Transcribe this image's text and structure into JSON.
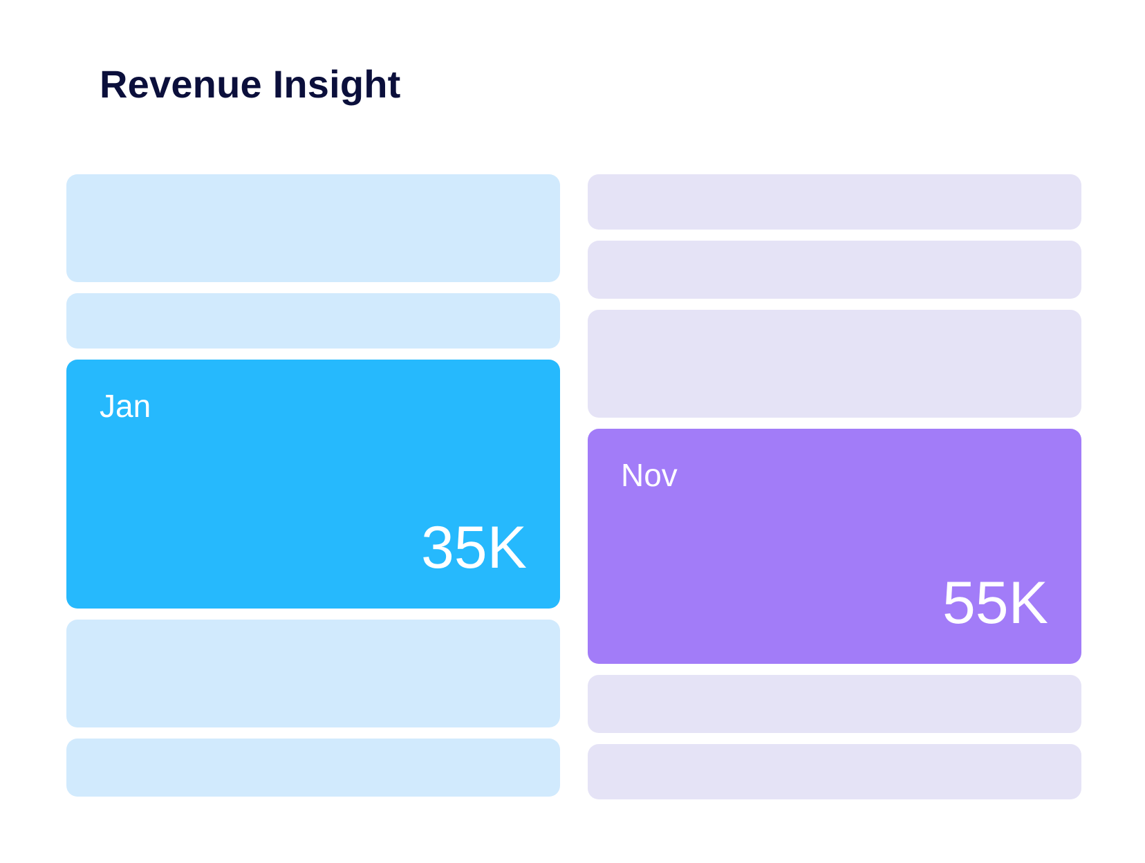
{
  "header": {
    "title": "Revenue Insight"
  },
  "left_column": {
    "color_placeholder": "#d1eafd",
    "highlight": {
      "month": "Jan",
      "value": "35K",
      "color": "#26b9fd"
    }
  },
  "right_column": {
    "color_placeholder": "#e5e3f6",
    "highlight": {
      "month": "Nov",
      "value": "55K",
      "color": "#a27cf8"
    }
  }
}
